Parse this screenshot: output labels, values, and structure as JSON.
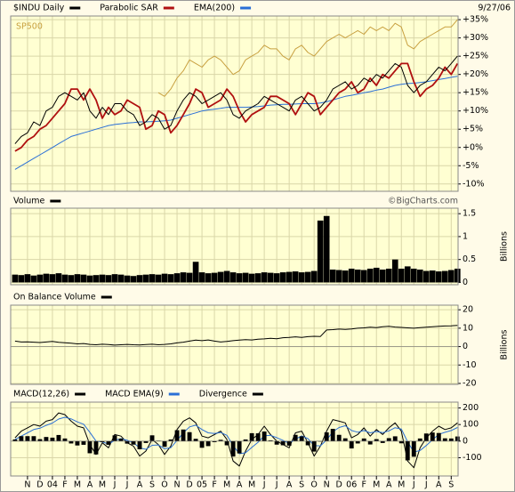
{
  "chart_data": [
    {
      "type": "line",
      "date": "9/27/06",
      "x": [
        0,
        0.5,
        1,
        1.5,
        2,
        2.5,
        3,
        3.5,
        4,
        4.5,
        5,
        5.5,
        6,
        6.5,
        7,
        7.5,
        8,
        8.5,
        9,
        9.5,
        10,
        10.5,
        11,
        11.5,
        12,
        12.5,
        13,
        13.5,
        14,
        14.5,
        15,
        15.5,
        16,
        16.5,
        17,
        17.5,
        18,
        18.5,
        19,
        19.5,
        20,
        20.5,
        21,
        21.5,
        22,
        22.5,
        23,
        23.5,
        24,
        24.5,
        25,
        25.5,
        26,
        26.5,
        27,
        27.5,
        28,
        28.5,
        29,
        29.5,
        30,
        30.5,
        31,
        31.5,
        32,
        32.5,
        33,
        33.5,
        34,
        34.5,
        35,
        35.5
      ],
      "ylim": [
        -12,
        36
      ],
      "yticks": [
        {
          "value": 35,
          "label": "+35%"
        },
        {
          "value": 30,
          "label": "+30%"
        },
        {
          "value": 25,
          "label": "+25%"
        },
        {
          "value": 20,
          "label": "+20%"
        },
        {
          "value": 15,
          "label": "+15%"
        },
        {
          "value": 10,
          "label": "+10%"
        },
        {
          "value": 5,
          "label": "+5%"
        },
        {
          "value": 0,
          "label": "+0%"
        },
        {
          "value": -5,
          "label": "-5%"
        },
        {
          "value": -10,
          "label": "-10%"
        }
      ],
      "grid": true,
      "series": [
        {
          "name": "$INDU Daily",
          "color": "#000000",
          "values": [
            1,
            3,
            4,
            7,
            6,
            10,
            11,
            14,
            15,
            14,
            13,
            15,
            10,
            8,
            11,
            9,
            12,
            12,
            10,
            9,
            6,
            7,
            9,
            8,
            5,
            6,
            10,
            13,
            15,
            14,
            12,
            13,
            14,
            15,
            13,
            9,
            8,
            10,
            11,
            12,
            14,
            13,
            12,
            11,
            10,
            13,
            14,
            12,
            10,
            11,
            13,
            16,
            17,
            18,
            16,
            17,
            19,
            18,
            20,
            19,
            21,
            23,
            22,
            17,
            15,
            17,
            18,
            20,
            22,
            21,
            23,
            25
          ]
        },
        {
          "name": "Parabolic SAR",
          "color": "#b01010",
          "values": [
            -1,
            0,
            2,
            3,
            5,
            6,
            8,
            10,
            12,
            16,
            16,
            13,
            16,
            13,
            8,
            11,
            9,
            10,
            13,
            12,
            11,
            5,
            6,
            10,
            9,
            4,
            6,
            9,
            12,
            16,
            15,
            11,
            12,
            13,
            16,
            14,
            10,
            7,
            9,
            10,
            11,
            14,
            14,
            13,
            12,
            9,
            12,
            15,
            14,
            9,
            11,
            13,
            15,
            16,
            18,
            15,
            16,
            19,
            17,
            20,
            19,
            21,
            23,
            23,
            18,
            14,
            16,
            17,
            19,
            22,
            20,
            23
          ]
        },
        {
          "name": "EMA(200)",
          "color": "#2a6fd6",
          "values": [
            -6,
            -5,
            -4,
            -3,
            -2,
            -1,
            0,
            1,
            2,
            3,
            3.5,
            4,
            4.5,
            5,
            5.5,
            6,
            6.3,
            6.5,
            6.7,
            6.8,
            7,
            7,
            7.1,
            7.2,
            7.3,
            7.5,
            8,
            8.5,
            9,
            9.5,
            10,
            10.3,
            10.5,
            10.7,
            11,
            11,
            11,
            11,
            11.1,
            11.2,
            11.4,
            11.6,
            11.7,
            11.8,
            11.8,
            11.9,
            12,
            12,
            12,
            12.2,
            12.5,
            13,
            13.5,
            14,
            14.3,
            14.6,
            15,
            15.3,
            15.7,
            16,
            16.5,
            17,
            17.3,
            17.5,
            17.6,
            17.8,
            18,
            18.3,
            18.6,
            18.9,
            19.2,
            19.5
          ]
        },
        {
          "name": "SP500",
          "color": "#c8a040",
          "values": [
            null,
            null,
            null,
            null,
            null,
            null,
            null,
            null,
            null,
            null,
            null,
            null,
            null,
            null,
            null,
            null,
            null,
            null,
            null,
            null,
            null,
            null,
            null,
            15,
            14,
            16,
            19,
            21,
            24,
            23,
            22,
            24,
            25,
            24,
            22,
            20,
            21,
            24,
            25,
            26,
            28,
            27,
            27,
            25,
            24,
            27,
            28,
            26,
            25,
            27,
            29,
            30,
            31,
            30,
            31,
            32,
            31,
            33,
            32,
            33,
            32,
            34,
            33,
            28,
            27,
            29,
            30,
            31,
            32,
            33,
            33,
            35
          ]
        }
      ]
    },
    {
      "type": "bar",
      "annotation": "©BigCharts.com",
      "ylabel": "Billions",
      "x": [
        0,
        0.5,
        1,
        1.5,
        2,
        2.5,
        3,
        3.5,
        4,
        4.5,
        5,
        5.5,
        6,
        6.5,
        7,
        7.5,
        8,
        8.5,
        9,
        9.5,
        10,
        10.5,
        11,
        11.5,
        12,
        12.5,
        13,
        13.5,
        14,
        14.5,
        15,
        15.5,
        16,
        16.5,
        17,
        17.5,
        18,
        18.5,
        19,
        19.5,
        20,
        20.5,
        21,
        21.5,
        22,
        22.5,
        23,
        23.5,
        24,
        24.5,
        25,
        25.5,
        26,
        26.5,
        27,
        27.5,
        28,
        28.5,
        29,
        29.5,
        30,
        30.5,
        31,
        31.5,
        32,
        32.5,
        33,
        33.5,
        34,
        34.5,
        35,
        35.5
      ],
      "ylim": [
        -0.05,
        1.62
      ],
      "yticks": [
        0,
        0.5,
        1,
        1.5
      ],
      "grid": true,
      "series": [
        {
          "name": "Volume",
          "color": "#000000",
          "values": [
            0.17,
            0.16,
            0.18,
            0.15,
            0.17,
            0.19,
            0.18,
            0.2,
            0.17,
            0.16,
            0.18,
            0.17,
            0.15,
            0.16,
            0.17,
            0.16,
            0.18,
            0.17,
            0.15,
            0.14,
            0.16,
            0.17,
            0.18,
            0.17,
            0.19,
            0.18,
            0.2,
            0.22,
            0.21,
            0.45,
            0.22,
            0.2,
            0.21,
            0.23,
            0.25,
            0.22,
            0.2,
            0.21,
            0.19,
            0.2,
            0.22,
            0.21,
            0.2,
            0.22,
            0.23,
            0.24,
            0.22,
            0.23,
            0.25,
            1.35,
            1.45,
            0.28,
            0.27,
            0.26,
            0.3,
            0.28,
            0.27,
            0.3,
            0.32,
            0.28,
            0.3,
            0.5,
            0.3,
            0.35,
            0.3,
            0.28,
            0.25,
            0.26,
            0.24,
            0.25,
            0.27,
            0.3
          ]
        }
      ]
    },
    {
      "type": "line",
      "ylabel": "Billions",
      "x": [
        0,
        0.5,
        1,
        1.5,
        2,
        2.5,
        3,
        3.5,
        4,
        4.5,
        5,
        5.5,
        6,
        6.5,
        7,
        7.5,
        8,
        8.5,
        9,
        9.5,
        10,
        10.5,
        11,
        11.5,
        12,
        12.5,
        13,
        13.5,
        14,
        14.5,
        15,
        15.5,
        16,
        16.5,
        17,
        17.5,
        18,
        18.5,
        19,
        19.5,
        20,
        20.5,
        21,
        21.5,
        22,
        22.5,
        23,
        23.5,
        24,
        24.5,
        25,
        25.5,
        26,
        26.5,
        27,
        27.5,
        28,
        28.5,
        29,
        29.5,
        30,
        30.5,
        31,
        31.5,
        32,
        32.5,
        33,
        33.5,
        34,
        34.5,
        35,
        35.5
      ],
      "ylim": [
        -20.5,
        22.5
      ],
      "yticks": [
        -20,
        -10,
        0,
        10,
        20
      ],
      "grid": true,
      "series": [
        {
          "name": "On Balance Volume",
          "color": "#000000",
          "values": [
            3,
            2.5,
            2.6,
            2.4,
            2.2,
            2.5,
            2.8,
            2.3,
            2.1,
            1.8,
            1.5,
            1.7,
            1.2,
            1.0,
            1.3,
            1.1,
            0.8,
            1.0,
            1.2,
            1.0,
            0.9,
            1.1,
            1.3,
            1.0,
            1.2,
            1.5,
            2.0,
            2.4,
            3.0,
            3.5,
            3.2,
            3.6,
            3.0,
            2.5,
            2.8,
            3.2,
            3.5,
            3.8,
            3.6,
            4.0,
            4.2,
            4.5,
            4.3,
            4.8,
            5.0,
            5.3,
            5.0,
            5.4,
            5.6,
            5.5,
            9,
            9.2,
            9.5,
            9.3,
            9.6,
            10,
            10.2,
            10.5,
            10.3,
            10.8,
            11,
            10.6,
            10.4,
            10.2,
            10.0,
            10.3,
            10.5,
            10.8,
            11.0,
            11.2,
            11.3,
            11.5
          ]
        }
      ]
    },
    {
      "type": "line",
      "x": [
        0,
        0.5,
        1,
        1.5,
        2,
        2.5,
        3,
        3.5,
        4,
        4.5,
        5,
        5.5,
        6,
        6.5,
        7,
        7.5,
        8,
        8.5,
        9,
        9.5,
        10,
        10.5,
        11,
        11.5,
        12,
        12.5,
        13,
        13.5,
        14,
        14.5,
        15,
        15.5,
        16,
        16.5,
        17,
        17.5,
        18,
        18.5,
        19,
        19.5,
        20,
        20.5,
        21,
        21.5,
        22,
        22.5,
        23,
        23.5,
        24,
        24.5,
        25,
        25.5,
        26,
        26.5,
        27,
        27.5,
        28,
        28.5,
        29,
        29.5,
        30,
        30.5,
        31,
        31.5,
        32,
        32.5,
        33,
        33.5,
        34,
        34.5,
        35,
        35.5
      ],
      "xlim": [
        -0.35,
        35.55
      ],
      "xticks": [
        {
          "value": 1,
          "label": "N"
        },
        {
          "value": 2,
          "label": "D"
        },
        {
          "value": 3,
          "label": "04"
        },
        {
          "value": 4,
          "label": "F"
        },
        {
          "value": 5,
          "label": "M"
        },
        {
          "value": 6,
          "label": "A"
        },
        {
          "value": 7,
          "label": "M"
        },
        {
          "value": 8,
          "label": "J"
        },
        {
          "value": 9,
          "label": "J"
        },
        {
          "value": 10,
          "label": "A"
        },
        {
          "value": 11,
          "label": "S"
        },
        {
          "value": 12,
          "label": "O"
        },
        {
          "value": 13,
          "label": "N"
        },
        {
          "value": 14,
          "label": "D"
        },
        {
          "value": 15,
          "label": "05"
        },
        {
          "value": 16,
          "label": "F"
        },
        {
          "value": 17,
          "label": "M"
        },
        {
          "value": 18,
          "label": "A"
        },
        {
          "value": 19,
          "label": "M"
        },
        {
          "value": 20,
          "label": "J"
        },
        {
          "value": 21,
          "label": "J"
        },
        {
          "value": 22,
          "label": "A"
        },
        {
          "value": 23,
          "label": "S"
        },
        {
          "value": 24,
          "label": "O"
        },
        {
          "value": 25,
          "label": "N"
        },
        {
          "value": 26,
          "label": "D"
        },
        {
          "value": 27,
          "label": "06"
        },
        {
          "value": 28,
          "label": "F"
        },
        {
          "value": 29,
          "label": "M"
        },
        {
          "value": 30,
          "label": "A"
        },
        {
          "value": 31,
          "label": "M"
        },
        {
          "value": 32,
          "label": "J"
        },
        {
          "value": 33,
          "label": "J"
        },
        {
          "value": 34,
          "label": "A"
        },
        {
          "value": 35,
          "label": "S"
        }
      ],
      "ylim": [
        -210,
        235
      ],
      "yticks": [
        -100,
        0,
        100,
        200
      ],
      "grid": true,
      "series": [
        {
          "name": "MACD(12,26)",
          "color": "#000000",
          "values": [
            20,
            60,
            80,
            100,
            90,
            120,
            130,
            170,
            160,
            120,
            90,
            80,
            -20,
            -80,
            -10,
            -40,
            40,
            30,
            -10,
            -30,
            -90,
            -60,
            10,
            -20,
            -80,
            -30,
            70,
            120,
            140,
            110,
            30,
            20,
            40,
            60,
            10,
            -120,
            -150,
            -60,
            10,
            40,
            90,
            40,
            0,
            -20,
            -40,
            50,
            60,
            -10,
            -90,
            -30,
            60,
            130,
            120,
            110,
            20,
            40,
            80,
            30,
            70,
            40,
            80,
            110,
            60,
            -120,
            -160,
            -40,
            20,
            60,
            90,
            70,
            80,
            110
          ]
        },
        {
          "name": "MACD EMA(9)",
          "color": "#2a6fd6",
          "values": [
            10,
            30,
            50,
            70,
            78,
            95,
            109,
            133,
            144,
            134,
            116,
            102,
            53,
            0,
            -4,
            -18,
            5,
            15,
            5,
            -9,
            -41,
            -49,
            -25,
            -23,
            -46,
            -40,
            4,
            50,
            86,
            96,
            70,
            50,
            46,
            52,
            35,
            -27,
            -76,
            -70,
            -38,
            -7,
            32,
            35,
            21,
            5,
            -13,
            12,
            31,
            15,
            -27,
            -28,
            7,
            56,
            82,
            93,
            64,
            54,
            64,
            50,
            58,
            51,
            62,
            81,
            73,
            -4,
            -66,
            -56,
            -26,
            8,
            41,
            53,
            64,
            82
          ]
        },
        {
          "name": "Divergence",
          "color": "#000000",
          "kind": "bar",
          "values": [
            10,
            30,
            30,
            30,
            12,
            25,
            21,
            37,
            16,
            -14,
            -26,
            -22,
            -73,
            -80,
            -6,
            -22,
            35,
            15,
            -15,
            -21,
            -49,
            -11,
            35,
            3,
            -34,
            10,
            66,
            70,
            54,
            14,
            -40,
            -30,
            -6,
            8,
            -25,
            -93,
            -74,
            10,
            48,
            47,
            58,
            5,
            -21,
            -25,
            -27,
            38,
            29,
            -25,
            -63,
            -2,
            53,
            74,
            38,
            17,
            -44,
            -14,
            16,
            -20,
            12,
            -11,
            18,
            29,
            -13,
            -116,
            -94,
            16,
            46,
            52,
            49,
            17,
            16,
            28
          ]
        }
      ]
    }
  ]
}
